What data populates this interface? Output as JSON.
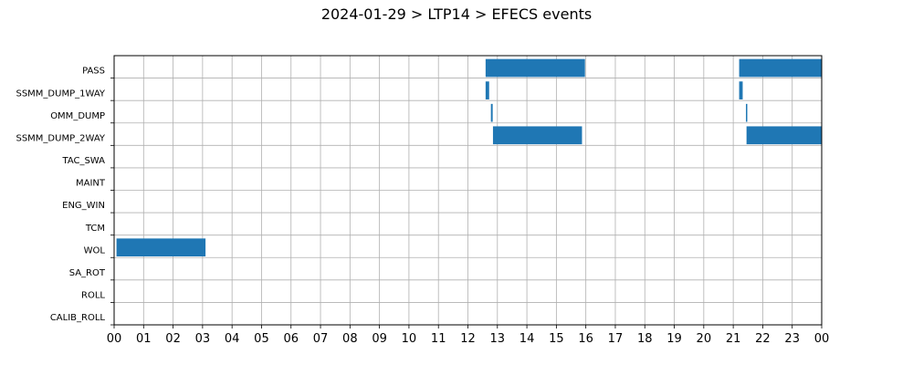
{
  "chart_data": {
    "type": "timeline",
    "title": "2024-01-29 > LTP14 > EFECS events",
    "xlabel": "",
    "ylabel": "",
    "xlim": [
      0,
      24
    ],
    "x_tick_labels": [
      "00",
      "01",
      "02",
      "03",
      "04",
      "05",
      "06",
      "07",
      "08",
      "09",
      "10",
      "11",
      "12",
      "13",
      "14",
      "15",
      "16",
      "17",
      "18",
      "19",
      "20",
      "21",
      "22",
      "23",
      "00"
    ],
    "grid": true,
    "bar_color": "#1f77b4",
    "categories": [
      "PASS",
      "SSMM_DUMP_1WAY",
      "OMM_DUMP",
      "SSMM_DUMP_2WAY",
      "TAC_SWA",
      "MAINT",
      "ENG_WIN",
      "TCM",
      "WOL",
      "SA_ROT",
      "ROLL",
      "CALIB_ROLL"
    ],
    "events": [
      {
        "category": "PASS",
        "start": 12.6,
        "end": 15.97
      },
      {
        "category": "PASS",
        "start": 21.2,
        "end": 24.0
      },
      {
        "category": "SSMM_DUMP_1WAY",
        "start": 12.6,
        "end": 12.72
      },
      {
        "category": "SSMM_DUMP_1WAY",
        "start": 21.2,
        "end": 21.32
      },
      {
        "category": "OMM_DUMP",
        "start": 12.78,
        "end": 12.84
      },
      {
        "category": "OMM_DUMP",
        "start": 21.43,
        "end": 21.47
      },
      {
        "category": "SSMM_DUMP_2WAY",
        "start": 12.85,
        "end": 15.87
      },
      {
        "category": "SSMM_DUMP_2WAY",
        "start": 21.45,
        "end": 24.0
      },
      {
        "category": "WOL",
        "start": 0.08,
        "end": 3.1
      }
    ]
  }
}
